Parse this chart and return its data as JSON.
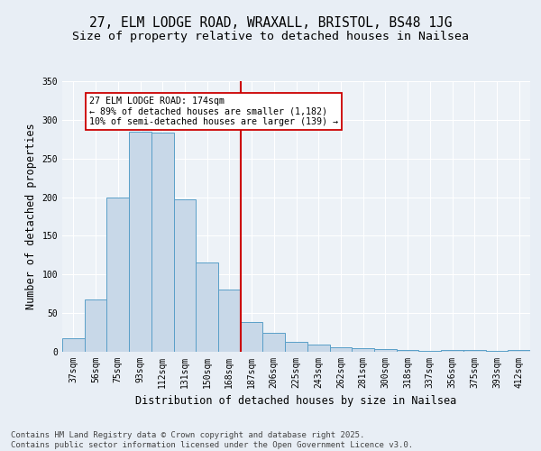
{
  "title1": "27, ELM LODGE ROAD, WRAXALL, BRISTOL, BS48 1JG",
  "title2": "Size of property relative to detached houses in Nailsea",
  "xlabel": "Distribution of detached houses by size in Nailsea",
  "ylabel": "Number of detached properties",
  "categories": [
    "37sqm",
    "56sqm",
    "75sqm",
    "93sqm",
    "112sqm",
    "131sqm",
    "150sqm",
    "168sqm",
    "187sqm",
    "206sqm",
    "225sqm",
    "243sqm",
    "262sqm",
    "281sqm",
    "300sqm",
    "318sqm",
    "337sqm",
    "356sqm",
    "375sqm",
    "393sqm",
    "412sqm"
  ],
  "bar_heights": [
    17,
    68,
    200,
    285,
    283,
    197,
    115,
    80,
    38,
    24,
    13,
    9,
    6,
    5,
    3,
    2,
    1,
    2,
    2,
    1,
    2
  ],
  "bar_color": "#c8d8e8",
  "bar_edge_color": "#5a9fc8",
  "vline_x": 7,
  "vline_color": "#cc0000",
  "annotation_text": "27 ELM LODGE ROAD: 174sqm\n← 89% of detached houses are smaller (1,182)\n10% of semi-detached houses are larger (139) →",
  "annotation_box_color": "#ffffff",
  "annotation_box_edge": "#cc0000",
  "ylim": [
    0,
    350
  ],
  "yticks": [
    0,
    50,
    100,
    150,
    200,
    250,
    300,
    350
  ],
  "footnote": "Contains HM Land Registry data © Crown copyright and database right 2025.\nContains public sector information licensed under the Open Government Licence v3.0.",
  "bg_color": "#e8eef5",
  "plot_bg_color": "#edf2f7",
  "grid_color": "#ffffff",
  "title_fontsize": 10.5,
  "subtitle_fontsize": 9.5,
  "axis_label_fontsize": 8.5,
  "tick_fontsize": 7,
  "footnote_fontsize": 6.5
}
